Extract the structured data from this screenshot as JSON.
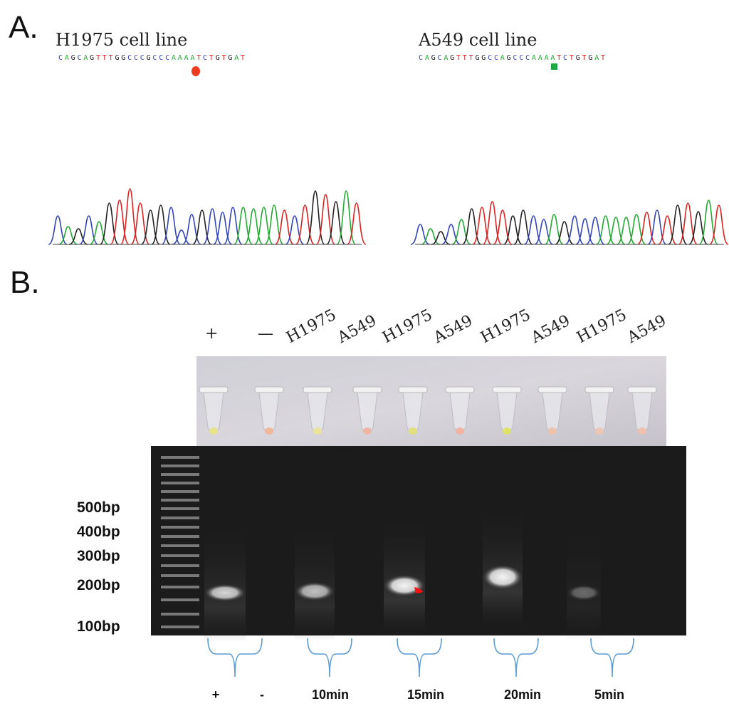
{
  "panel_a": {
    "letter": "A.",
    "left": {
      "title": "H1975 cell line",
      "sequence": "CAGCAGTTTGGCCCGCCCAAAATCTGTGAT",
      "marker_icon": "red-circle-marker-icon",
      "marker_color": "#ee3a1f"
    },
    "right": {
      "title": "A549 cell line",
      "sequence": "CAGCAGTTTGGCCAGCCCAAAATCTGTGAT",
      "marker_icon": "green-square-marker-icon",
      "marker_color": "#1faa45"
    },
    "base_colors": {
      "A": "#22aa33",
      "C": "#3344bb",
      "G": "#222222",
      "T": "#dd2222"
    }
  },
  "panel_b": {
    "letter": "B.",
    "lane_labels": [
      "+",
      "—",
      "H1975",
      "A549",
      "H1975",
      "A549",
      "H1975",
      "A549",
      "H1975",
      "A549"
    ],
    "ladder_labels": [
      "500bp",
      "400bp",
      "300bp",
      "200bp",
      "100bp"
    ],
    "group_labels": [
      "+",
      "-",
      "10min",
      "15min",
      "20min",
      "5min"
    ],
    "brace_color": "#5b9bd5"
  }
}
